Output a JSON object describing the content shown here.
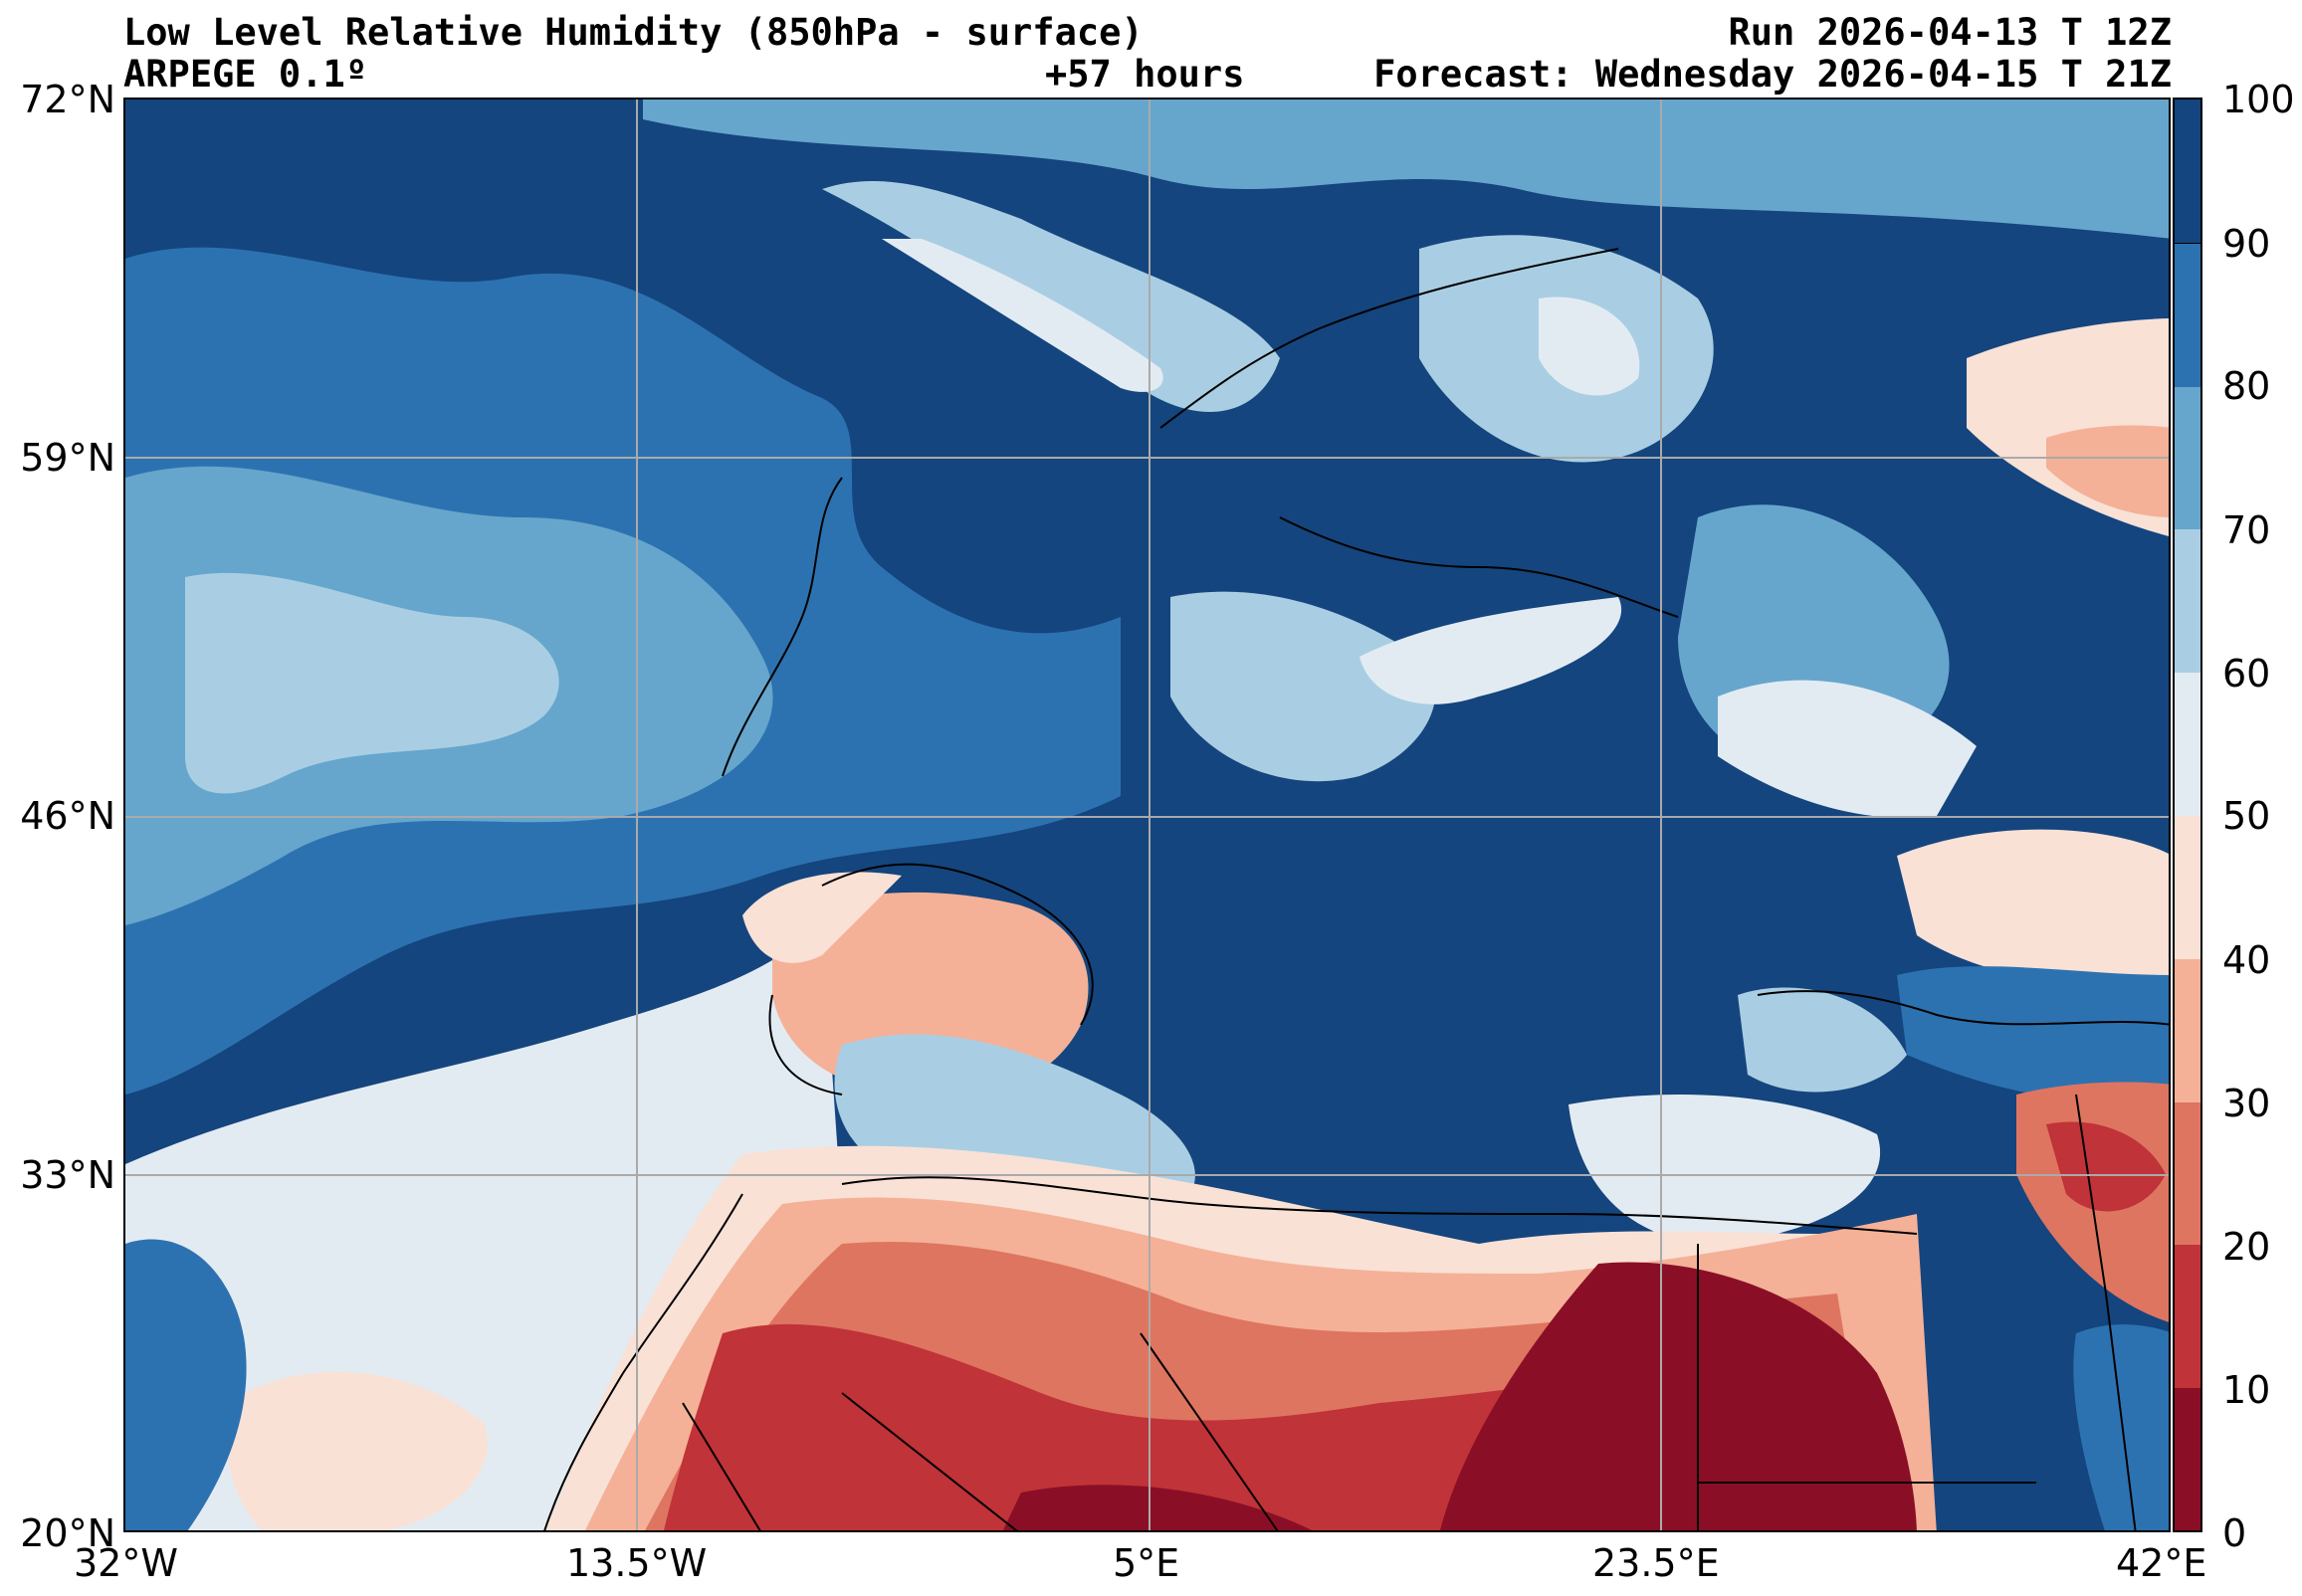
{
  "header": {
    "title": "Low Level Relative Humidity (850hPa - surface)",
    "model": "ARPEGE 0.1º",
    "lead": "+57 hours",
    "run": "Run 2026-04-13 T 12Z",
    "forecast": "Forecast: Wednesday 2026-04-15 T 21Z"
  },
  "map": {
    "lat_range": [
      20,
      72
    ],
    "lon_range": [
      -32,
      42
    ],
    "lat_ticks": [
      "72°N",
      "59°N",
      "46°N",
      "33°N",
      "20°N"
    ],
    "lon_ticks": [
      "32°W",
      "13.5°W",
      "5°E",
      "23.5°E",
      "42°E"
    ]
  },
  "colorbar": {
    "ticks": [
      "100",
      "90",
      "80",
      "70",
      "60",
      "50",
      "40",
      "30",
      "20",
      "10",
      "0"
    ],
    "levels": [
      0,
      10,
      20,
      30,
      40,
      50,
      60,
      70,
      80,
      90,
      100
    ],
    "colors": [
      "#8a0f26",
      "#c03338",
      "#de7560",
      "#f4b197",
      "#f9e1d6",
      "#e3ebf2",
      "#a9cee3",
      "#66a6cd",
      "#2d72b0",
      "#14457e"
    ]
  }
}
